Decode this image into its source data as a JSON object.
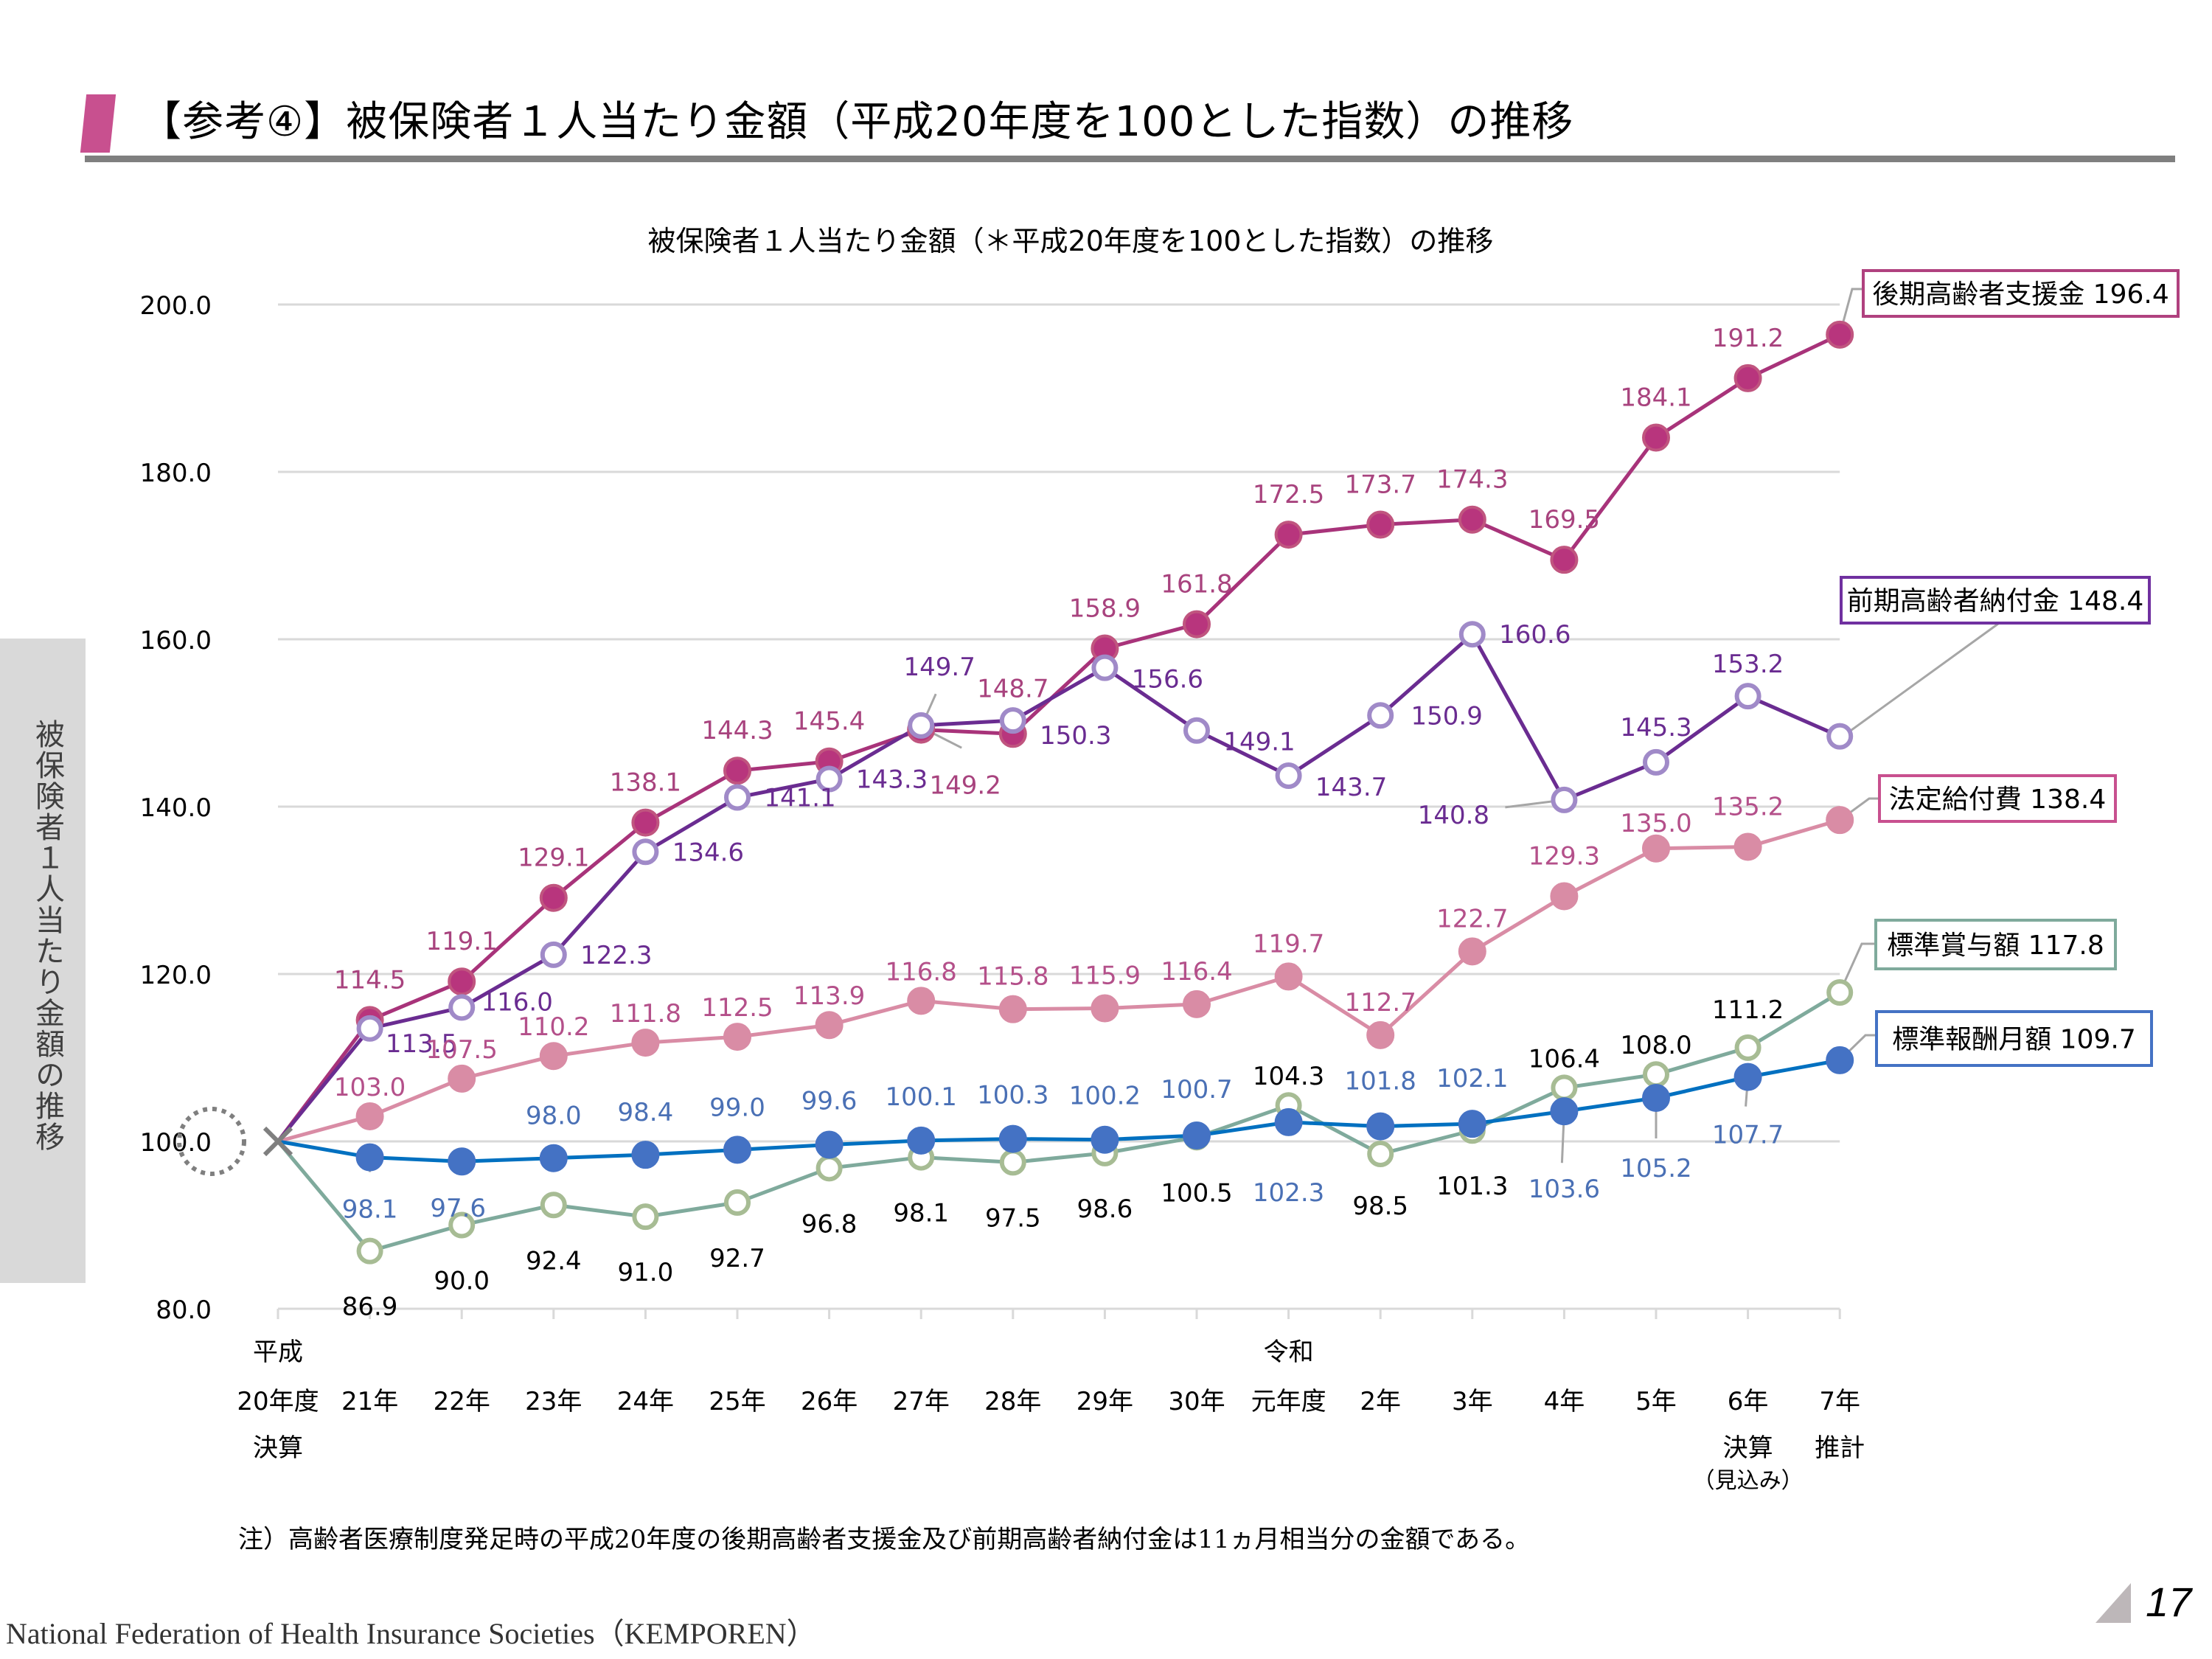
{
  "page": {
    "title": "【参考④】被保険者１人当たり金額（平成20年度を100とした指数）の推移",
    "side_label": "被保険者１人当たり金額の推移",
    "note": "注）高齢者医療制度発足時の平成20年度の後期高齢者支援金及び前期高齢者納付金は11ヵ月相当分の金額である。",
    "footer": "National Federation of Health Insurance Societies（KEMPOREN）",
    "page_number": "17",
    "accent_color": "#c8508f"
  },
  "chart_data": {
    "type": "line",
    "title": "被保険者１人当たり金額（＊平成20年度を100とした指数）の推移",
    "xlabel": "",
    "ylabel": "",
    "ylim": [
      80,
      200
    ],
    "yticks": [
      "80.0",
      "100.0",
      "120.0",
      "140.0",
      "160.0",
      "180.0",
      "200.0"
    ],
    "grid": true,
    "categories": [
      "平成20年度決算",
      "21年",
      "22年",
      "23年",
      "24年",
      "25年",
      "26年",
      "27年",
      "28年",
      "29年",
      "30年",
      "令和元年度",
      "2年",
      "3年",
      "4年",
      "5年",
      "6年決算(見込み)",
      "7年推計"
    ],
    "tick_labels": [
      [
        "平成",
        "20年度",
        "決算"
      ],
      [
        "",
        "21年",
        ""
      ],
      [
        "",
        "22年",
        ""
      ],
      [
        "",
        "23年",
        ""
      ],
      [
        "",
        "24年",
        ""
      ],
      [
        "",
        "25年",
        ""
      ],
      [
        "",
        "26年",
        ""
      ],
      [
        "",
        "27年",
        ""
      ],
      [
        "",
        "28年",
        ""
      ],
      [
        "",
        "29年",
        ""
      ],
      [
        "",
        "30年",
        ""
      ],
      [
        "令和",
        "元年度",
        ""
      ],
      [
        "",
        "2年",
        ""
      ],
      [
        "",
        "3年",
        ""
      ],
      [
        "",
        "4年",
        ""
      ],
      [
        "",
        "5年",
        ""
      ],
      [
        "",
        "6年",
        "決算"
      ],
      [
        "",
        "7年",
        "推計"
      ]
    ],
    "tick_sublabel": "（見込み）",
    "base_label": "100.0",
    "series": [
      {
        "name": "後期高齢者支援金",
        "legend": "後期高齢者支援金 196.4",
        "color": "#a8337a",
        "marker_fill": "#b8357d",
        "marker_stroke": "#c0557f",
        "label_color": "#a8437e",
        "hollow": false,
        "values": [
          100.0,
          114.5,
          119.1,
          129.1,
          138.1,
          144.3,
          145.4,
          149.2,
          148.7,
          158.9,
          161.8,
          172.5,
          173.7,
          174.3,
          169.5,
          184.1,
          191.2,
          196.4
        ]
      },
      {
        "name": "前期高齢者納付金",
        "legend": "前期高齢者納付金 148.4",
        "color": "#6a2c91",
        "marker_fill": "#ffffff",
        "marker_stroke": "#a08ac8",
        "label_color": "#6a2c91",
        "hollow": true,
        "values": [
          100.0,
          113.5,
          116.0,
          122.3,
          134.6,
          141.1,
          143.3,
          149.7,
          150.3,
          156.6,
          149.1,
          143.7,
          150.9,
          160.6,
          140.8,
          145.3,
          153.2,
          148.4
        ]
      },
      {
        "name": "法定給付費",
        "legend": "法定給付費 138.4",
        "color": "#d98ca5",
        "marker_fill": "#d98ca5",
        "marker_stroke": "#d98ca5",
        "label_color": "#b4508a",
        "hollow": false,
        "values": [
          100.0,
          103.0,
          107.5,
          110.2,
          111.8,
          112.5,
          113.9,
          116.8,
          115.8,
          115.9,
          116.4,
          119.7,
          112.7,
          122.7,
          129.3,
          135.0,
          135.2,
          138.4
        ]
      },
      {
        "name": "標準賞与額",
        "legend": "標準賞与額 117.8",
        "color": "#7faa9c",
        "marker_fill": "#ffffff",
        "marker_stroke": "#a7bc94",
        "label_color": "#000000",
        "hollow": true,
        "values": [
          100.0,
          86.9,
          90.0,
          92.4,
          91.0,
          92.7,
          96.8,
          98.1,
          97.5,
          98.6,
          100.5,
          104.3,
          98.5,
          101.3,
          106.4,
          108.0,
          111.2,
          117.8
        ]
      },
      {
        "name": "標準報酬月額",
        "legend": "標準報酬月額 109.7",
        "color": "#0070c0",
        "marker_fill": "#4472c4",
        "marker_stroke": "#4472c4",
        "label_color": "#4a70b5",
        "hollow": false,
        "values": [
          100.0,
          98.1,
          97.6,
          98.0,
          98.4,
          99.0,
          99.6,
          100.1,
          100.3,
          100.2,
          100.7,
          102.3,
          101.8,
          102.1,
          103.6,
          105.2,
          107.7,
          109.7
        ]
      }
    ]
  }
}
